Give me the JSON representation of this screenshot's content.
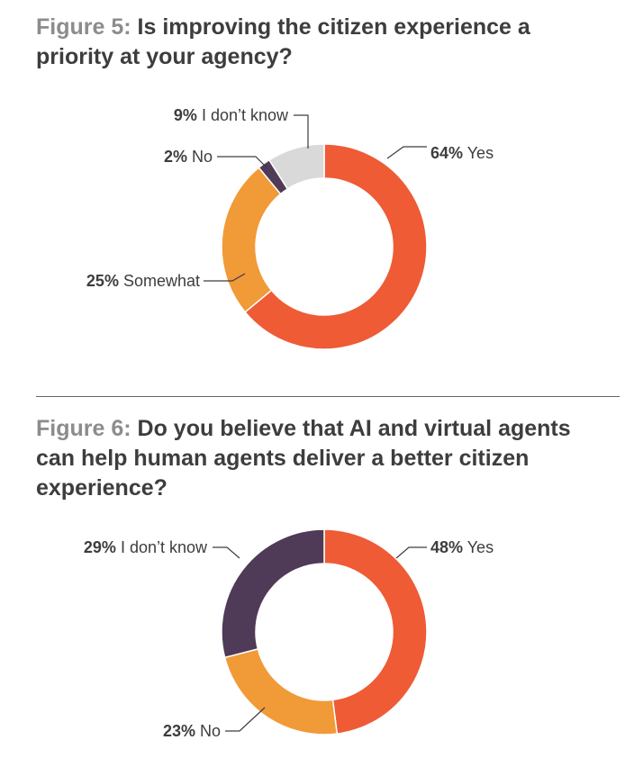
{
  "figure5": {
    "number": "Figure 5:",
    "title": "Is improving the citizen experience a priority at your agency?"
  },
  "figure6": {
    "number": "Figure 6:",
    "title": "Do you believe that AI and virtual agents can help human agents deliver a better citizen experience?"
  },
  "chart_data": [
    {
      "type": "pie",
      "donut": true,
      "categories": [
        "Yes",
        "Somewhat",
        "No",
        "I don’t know"
      ],
      "values": [
        64,
        25,
        2,
        9
      ],
      "labels": [
        "64%",
        "25%",
        "2%",
        "9%"
      ],
      "colors": [
        "#ee5b35",
        "#f19a38",
        "#4f3a57",
        "#d9d9d9"
      ],
      "start": "12 o'clock, clockwise"
    },
    {
      "type": "pie",
      "donut": true,
      "categories": [
        "Yes",
        "No",
        "I don’t know"
      ],
      "values": [
        48,
        23,
        29
      ],
      "labels": [
        "48%",
        "23%",
        "29%"
      ],
      "colors": [
        "#ee5b35",
        "#f19a38",
        "#4f3a57"
      ],
      "start": "12 o'clock, clockwise"
    }
  ]
}
